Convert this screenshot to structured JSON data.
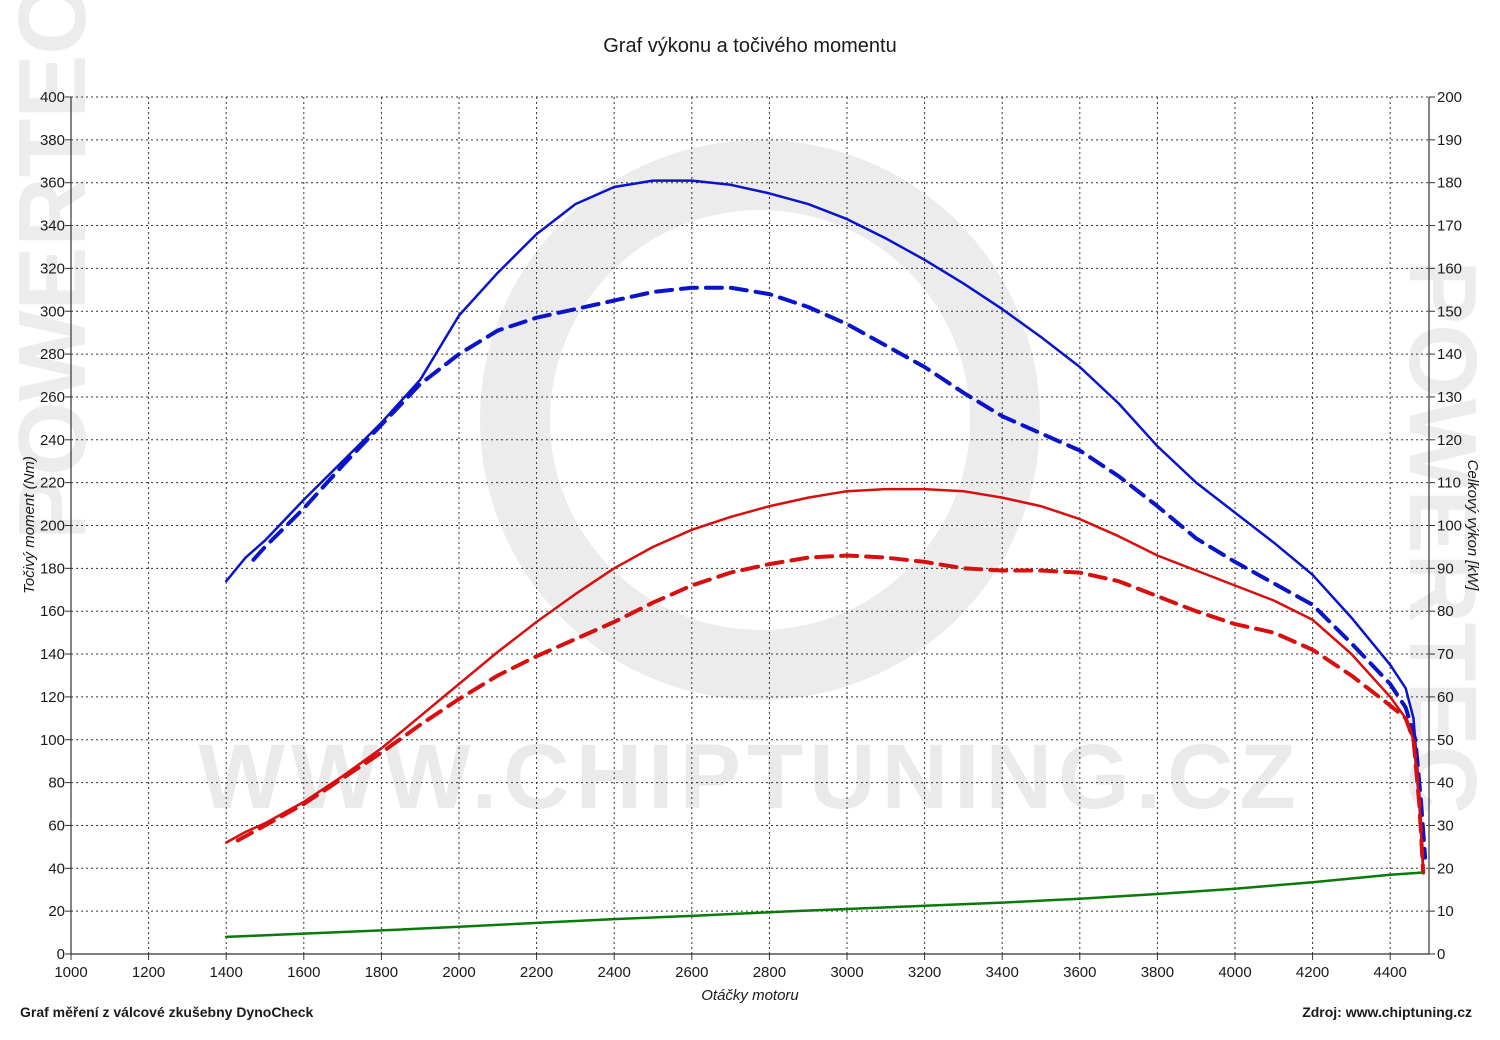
{
  "chart_data": {
    "type": "line",
    "title": "Graf výkonu a točivého momentu",
    "xlabel": "Otáčky motoru",
    "ylabel_left": "Točivý moment (Nm)",
    "ylabel_right": "Celkový výkon [kW]",
    "xlim": [
      1000,
      4500
    ],
    "ylim_left": [
      0,
      400
    ],
    "ylim_right": [
      0,
      200
    ],
    "x_ticks": [
      1000,
      1200,
      1400,
      1600,
      1800,
      2000,
      2200,
      2400,
      2600,
      2800,
      3000,
      3200,
      3400,
      3600,
      3800,
      4000,
      4200,
      4400
    ],
    "y_ticks_left": [
      0,
      20,
      40,
      60,
      80,
      100,
      120,
      140,
      160,
      180,
      200,
      220,
      240,
      260,
      280,
      300,
      320,
      340,
      360,
      380,
      400
    ],
    "y_ticks_right": [
      0,
      10,
      20,
      30,
      40,
      50,
      60,
      70,
      80,
      90,
      100,
      110,
      120,
      130,
      140,
      150,
      160,
      170,
      180,
      190,
      200
    ],
    "grid": true,
    "series": [
      {
        "axis": "left",
        "color": "#0a14c8",
        "dash": false,
        "x": [
          1400,
          1450,
          1500,
          1600,
          1700,
          1800,
          1900,
          2000,
          2100,
          2200,
          2300,
          2400,
          2500,
          2600,
          2700,
          2800,
          2900,
          3000,
          3100,
          3200,
          3300,
          3400,
          3500,
          3600,
          3700,
          3800,
          3900,
          4000,
          4100,
          4200,
          4300,
          4400,
          4440,
          4460,
          4475,
          4485
        ],
        "y": [
          174,
          185,
          193,
          212,
          230,
          248,
          268,
          298,
          318,
          336,
          350,
          358,
          361,
          361,
          359,
          355,
          350,
          343,
          334,
          324,
          313,
          301,
          288,
          274,
          257,
          237,
          220,
          206,
          192,
          177,
          157,
          135,
          124,
          110,
          75,
          40
        ]
      },
      {
        "axis": "left",
        "color": "#0a14c8",
        "dash": true,
        "x": [
          1470,
          1500,
          1600,
          1700,
          1800,
          1900,
          2000,
          2100,
          2200,
          2300,
          2400,
          2500,
          2600,
          2700,
          2800,
          2900,
          3000,
          3100,
          3200,
          3300,
          3400,
          3500,
          3600,
          3700,
          3800,
          3900,
          4000,
          4100,
          4200,
          4300,
          4400,
          4440,
          4465,
          4480,
          4490
        ],
        "y": [
          184,
          190,
          208,
          228,
          247,
          266,
          280,
          291,
          297,
          301,
          305,
          309,
          311,
          311,
          308,
          302,
          294,
          284,
          274,
          262,
          251,
          243,
          235,
          223,
          209,
          194,
          183,
          173,
          163,
          145,
          126,
          115,
          100,
          70,
          45
        ]
      },
      {
        "axis": "right",
        "color": "#d80f0f",
        "dash": false,
        "x": [
          1400,
          1450,
          1500,
          1600,
          1700,
          1800,
          1900,
          2000,
          2100,
          2200,
          2300,
          2400,
          2500,
          2600,
          2700,
          2800,
          2900,
          3000,
          3100,
          3200,
          3300,
          3400,
          3500,
          3600,
          3700,
          3800,
          3900,
          4000,
          4100,
          4200,
          4300,
          4400,
          4440,
          4460,
          4475,
          4485
        ],
        "y": [
          26,
          28.5,
          30.5,
          35.5,
          41.5,
          48,
          55.5,
          63,
          70.5,
          77.5,
          84,
          90,
          95,
          99,
          102,
          104.5,
          106.5,
          108,
          108.5,
          108.5,
          108,
          106.5,
          104.5,
          101.5,
          97.5,
          93,
          89.5,
          86,
          82.5,
          78,
          70,
          60,
          55,
          50,
          35,
          19
        ]
      },
      {
        "axis": "right",
        "color": "#d80f0f",
        "dash": true,
        "x": [
          1430,
          1500,
          1600,
          1700,
          1800,
          1900,
          2000,
          2100,
          2200,
          2300,
          2400,
          2500,
          2600,
          2700,
          2800,
          2900,
          3000,
          3100,
          3200,
          3300,
          3400,
          3500,
          3600,
          3700,
          3800,
          3900,
          4000,
          4100,
          4200,
          4300,
          4400,
          4440,
          4460,
          4475,
          4485
        ],
        "y": [
          26.5,
          30,
          35,
          41,
          47,
          53.5,
          59.5,
          65,
          69.5,
          73.5,
          77.5,
          82,
          86,
          89,
          91,
          92.5,
          93,
          92.5,
          91.5,
          90,
          89.5,
          89.5,
          89,
          87,
          83.5,
          80,
          77,
          75,
          71,
          65,
          58,
          55,
          50,
          35,
          19
        ]
      },
      {
        "axis": "left",
        "color": "#0a7a0a",
        "dash": false,
        "x": [
          1400,
          1600,
          1800,
          2000,
          2200,
          2400,
          2600,
          2800,
          3000,
          3200,
          3400,
          3600,
          3800,
          4000,
          4200,
          4400,
          4480
        ],
        "y": [
          8,
          9.5,
          11,
          12.7,
          14.5,
          16.3,
          17.8,
          19.5,
          21,
          22.5,
          24,
          25.8,
          28,
          30.5,
          33.5,
          37,
          38
        ]
      }
    ]
  },
  "watermark": {
    "text": "WWW.CHIPTUNING.CZ",
    "side_text": "POWERTEC"
  },
  "footer": {
    "left": "Graf měření z válcové zkušebny DynoCheck",
    "right": "Zdroj: www.chiptuning.cz"
  }
}
